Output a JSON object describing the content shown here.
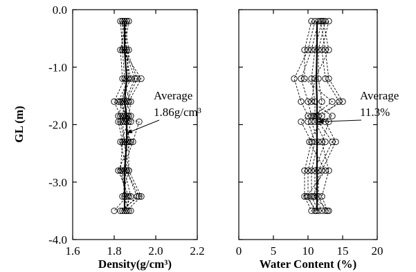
{
  "chart_data": [
    {
      "type": "line",
      "name": "density-profile",
      "xlabel": "Density(g/cm³)",
      "ylabel": "GL (m)",
      "xlim": [
        1.6,
        2.2
      ],
      "ylim": [
        -4.0,
        0.0
      ],
      "xticks": [
        "1.6",
        "1.8",
        "2.0",
        "2.2"
      ],
      "yticks": [
        "0.0",
        "-1.0",
        "-2.0",
        "-3.0",
        "-4.0"
      ],
      "depths": [
        -0.2,
        -0.7,
        -1.2,
        -1.6,
        -1.85,
        -1.95,
        -2.3,
        -2.8,
        -3.25,
        -3.5
      ],
      "series": [
        {
          "values": [
            1.84,
            1.84,
            1.85,
            1.8,
            1.83,
            1.82,
            1.84,
            1.83,
            1.86,
            1.8
          ]
        },
        {
          "values": [
            1.86,
            1.85,
            1.88,
            1.83,
            1.86,
            1.84,
            1.85,
            1.86,
            1.92,
            1.83
          ]
        },
        {
          "values": [
            1.85,
            1.86,
            1.91,
            1.86,
            1.88,
            1.86,
            1.87,
            1.87,
            1.93,
            1.86
          ]
        },
        {
          "values": [
            1.83,
            1.84,
            1.93,
            1.87,
            1.85,
            1.88,
            1.86,
            1.85,
            1.88,
            1.85
          ]
        },
        {
          "values": [
            1.85,
            1.87,
            1.86,
            1.84,
            1.82,
            1.92,
            1.89,
            1.84,
            1.85,
            1.87
          ]
        },
        {
          "values": [
            1.86,
            1.83,
            1.84,
            1.88,
            1.87,
            1.87,
            1.83,
            1.86,
            1.91,
            1.84
          ]
        },
        {
          "values": [
            1.87,
            1.85,
            1.9,
            1.85,
            1.84,
            1.85,
            1.88,
            1.82,
            1.87,
            1.86
          ]
        },
        {
          "values": [
            1.84,
            1.86,
            1.87,
            1.82,
            1.86,
            1.83,
            1.85,
            1.87,
            1.84,
            1.88
          ]
        }
      ],
      "average_line": {
        "values": [
          1.85,
          1.85,
          1.86,
          1.85,
          1.86,
          1.86,
          1.86,
          1.85,
          1.85,
          1.85
        ]
      },
      "annotation": {
        "line1": "Average",
        "line2": "1.86g/cm³",
        "target_x": 1.86,
        "target_y": -2.15
      }
    },
    {
      "type": "line",
      "name": "water-content-profile",
      "xlabel": "Water Content (%)",
      "ylabel": "",
      "xlim": [
        0,
        20
      ],
      "ylim": [
        -4.0,
        0.0
      ],
      "xticks": [
        "0",
        "5",
        "10",
        "15",
        "20"
      ],
      "yticks": [],
      "depths": [
        -0.2,
        -0.7,
        -1.2,
        -1.6,
        -1.85,
        -1.95,
        -2.3,
        -2.8,
        -3.25,
        -3.5
      ],
      "series": [
        {
          "values": [
            11.0,
            10.0,
            8.0,
            9.0,
            10.0,
            9.0,
            10.5,
            9.5,
            9.5,
            10.5
          ]
        },
        {
          "values": [
            11.5,
            10.5,
            9.0,
            10.0,
            10.5,
            10.0,
            11.0,
            10.0,
            10.0,
            11.0
          ]
        },
        {
          "values": [
            12.0,
            11.0,
            10.5,
            11.0,
            11.0,
            10.5,
            11.5,
            10.5,
            10.5,
            11.5
          ]
        },
        {
          "values": [
            12.5,
            11.5,
            11.5,
            12.0,
            11.5,
            11.0,
            12.5,
            11.0,
            11.0,
            12.0
          ]
        },
        {
          "values": [
            13.0,
            12.0,
            12.5,
            14.5,
            12.0,
            11.5,
            13.5,
            11.5,
            11.5,
            12.5
          ]
        },
        {
          "values": [
            10.5,
            9.5,
            9.5,
            13.5,
            10.8,
            12.5,
            14.0,
            12.0,
            10.8,
            13.0
          ]
        },
        {
          "values": [
            11.8,
            12.5,
            13.0,
            15.0,
            11.2,
            13.0,
            12.0,
            13.0,
            12.0,
            12.8
          ]
        },
        {
          "values": [
            12.2,
            13.0,
            11.0,
            10.5,
            13.5,
            11.8,
            10.2,
            12.5,
            9.8,
            11.2
          ]
        }
      ],
      "average_line": {
        "values": [
          11.3,
          11.3,
          11.2,
          11.3,
          11.3,
          11.3,
          11.3,
          11.3,
          11.3,
          11.3
        ]
      },
      "annotation": {
        "line1": "Average",
        "line2": "11.3%",
        "target_x": 11.3,
        "target_y": -1.95
      }
    }
  ]
}
